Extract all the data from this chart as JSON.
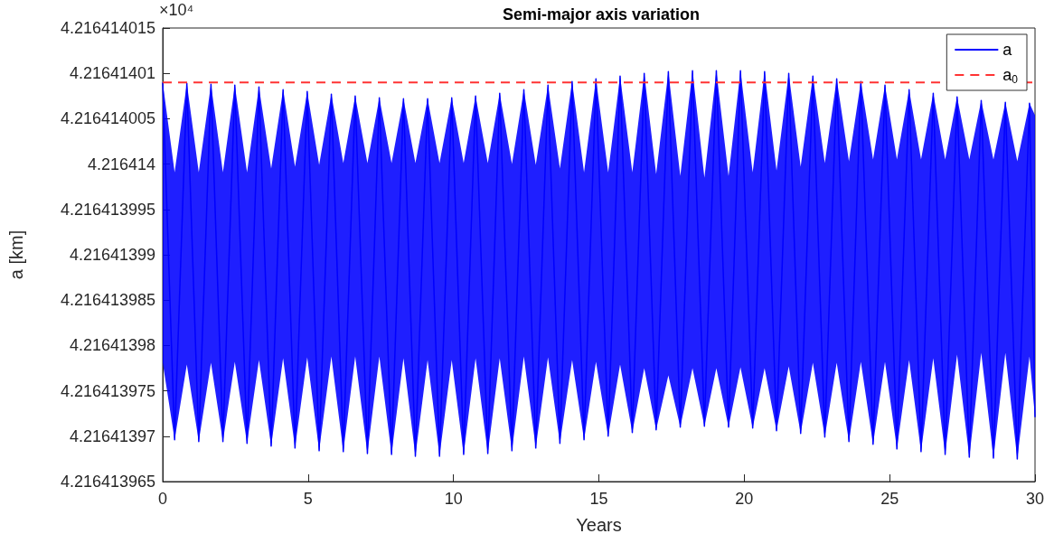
{
  "chart_data": {
    "type": "line",
    "title": "Semi-major axis variation",
    "xlabel": "Years",
    "ylabel": "a [km]",
    "annotations": [
      "×10⁴"
    ],
    "xlim": [
      0,
      30
    ],
    "xticks": [
      0,
      5,
      10,
      15,
      20,
      25,
      30
    ],
    "ylim": [
      4.216413965,
      4.216414015
    ],
    "yticks": [
      4.216413965,
      4.21641397,
      4.216413975,
      4.21641398,
      4.216413985,
      4.21641399,
      4.216413995,
      4.216414,
      4.216414005,
      4.21641401,
      4.216414015
    ],
    "grid": false,
    "legend": "top right",
    "marker": "none",
    "series": [
      {
        "name": "a",
        "color": "#0000ff",
        "x": [
          0,
          0.41,
          0.83,
          1.24,
          1.66,
          2.07,
          2.48,
          2.9,
          3.31,
          3.73,
          4.14,
          4.55,
          4.97,
          5.38,
          5.8,
          6.21,
          6.62,
          7.04,
          7.45,
          7.87,
          8.28,
          8.69,
          9.11,
          9.52,
          9.94,
          10.35,
          10.76,
          11.18,
          11.59,
          12.01,
          12.42,
          12.83,
          13.25,
          13.66,
          14.08,
          14.49,
          14.9,
          15.32,
          15.73,
          16.15,
          16.56,
          16.97,
          17.39,
          17.8,
          18.22,
          18.63,
          19.04,
          19.46,
          19.87,
          20.29,
          20.7,
          21.11,
          21.53,
          21.94,
          22.36,
          22.77,
          23.18,
          23.6,
          24.01,
          24.43,
          24.84,
          25.25,
          25.67,
          26.08,
          26.5,
          26.91,
          27.32,
          27.74,
          28.15,
          28.57,
          28.98,
          29.39,
          29.81,
          30
        ],
        "values": [
          4.216414009,
          4.2164139696,
          4.2164140089,
          4.2164139694,
          4.2164140088,
          4.2164139694,
          4.2164140087,
          4.2164139692,
          4.2164140085,
          4.2164139689,
          4.2164140082,
          4.2164139687,
          4.216414008,
          4.2164139684,
          4.2164140077,
          4.2164139683,
          4.2164140075,
          4.2164139681,
          4.2164140073,
          4.216413968,
          4.2164140072,
          4.2164139678,
          4.2164140072,
          4.2164139678,
          4.2164140073,
          4.216413968,
          4.2164140075,
          4.2164139681,
          4.2164140078,
          4.2164139684,
          4.2164140082,
          4.2164139687,
          4.2164140087,
          4.2164139692,
          4.2164140091,
          4.2164139696,
          4.2164140094,
          4.21641397,
          4.2164140097,
          4.2164139704,
          4.21641401,
          4.2164139707,
          4.2164140102,
          4.216413971,
          4.2164140103,
          4.2164139711,
          4.2164140103,
          4.216413971,
          4.2164140103,
          4.2164139709,
          4.2164140102,
          4.2164139706,
          4.21641401,
          4.2164139703,
          4.2164140097,
          4.2164139699,
          4.2164140094,
          4.2164139694,
          4.2164140091,
          4.2164139691,
          4.2164140087,
          4.2164139686,
          4.2164140082,
          4.2164139683,
          4.2164140078,
          4.216413968,
          4.2164140074,
          4.2164139677,
          4.216414007,
          4.2164139676,
          4.2164140068,
          4.2164139675,
          4.2164140067,
          4.2164139721
        ],
        "upper": [
          4.216414009,
          4.2164139991,
          4.2164140089,
          4.2164139991,
          4.2164140088,
          4.2164139991,
          4.2164140087,
          4.2164139991,
          4.2164140085,
          4.2164139995,
          4.2164140082,
          4.2164139997,
          4.216414008,
          4.2164139999,
          4.2164140077,
          4.2164140001,
          4.2164140075,
          4.2164140001,
          4.2164140073,
          4.2164140001,
          4.2164140072,
          4.2164140001,
          4.2164140072,
          4.2164140001,
          4.2164140073,
          4.2164140001,
          4.2164140075,
          4.2164140001,
          4.2164140078,
          4.216414,
          4.2164140082,
          4.2164139999,
          4.2164140087,
          4.2164139995,
          4.2164140091,
          4.2164139991,
          4.2164140094,
          4.2164139991,
          4.2164140097,
          4.2164139991,
          4.21641401,
          4.2164139989,
          4.2164140102,
          4.2164139987,
          4.2164140103,
          4.2164139985,
          4.2164140103,
          4.2164139987,
          4.2164140103,
          4.2164139991,
          4.2164140102,
          4.2164139993,
          4.21641401,
          4.2164139997,
          4.2164140097,
          4.2164140001,
          4.2164140094,
          4.2164140003,
          4.2164140091,
          4.2164140005,
          4.2164140087,
          4.2164140005,
          4.2164140082,
          4.2164140005,
          4.2164140078,
          4.2164140005,
          4.2164140074,
          4.2164140005,
          4.216414007,
          4.2164140005,
          4.2164140068,
          4.2164140003,
          4.2164140067,
          4.2164140054
        ],
        "lower": [
          4.2164139781,
          4.2164139696,
          4.2164139779,
          4.2164139694,
          4.2164139781,
          4.2164139694,
          4.2164139782,
          4.2164139692,
          4.2164139784,
          4.2164139689,
          4.2164139786,
          4.2164139687,
          4.2164139787,
          4.2164139684,
          4.2164139788,
          4.2164139683,
          4.2164139788,
          4.2164139681,
          4.2164139788,
          4.216413968,
          4.2164139786,
          4.2164139678,
          4.2164139784,
          4.2164139678,
          4.2164139784,
          4.216413968,
          4.2164139786,
          4.2164139681,
          4.2164139786,
          4.2164139684,
          4.2164139788,
          4.2164139687,
          4.2164139787,
          4.2164139692,
          4.2164139784,
          4.2164139696,
          4.2164139782,
          4.21641397,
          4.2164139779,
          4.2164139704,
          4.2164139775,
          4.2164139707,
          4.2164139767,
          4.216413971,
          4.2164139775,
          4.2164139711,
          4.2164139775,
          4.216413971,
          4.2164139776,
          4.2164139709,
          4.2164139775,
          4.2164139706,
          4.2164139777,
          4.2164139703,
          4.2164139781,
          4.2164139699,
          4.2164139781,
          4.2164139694,
          4.2164139782,
          4.2164139691,
          4.2164139782,
          4.2164139686,
          4.2164139784,
          4.2164139683,
          4.2164139786,
          4.216413968,
          4.216413979,
          4.2164139677,
          4.2164139792,
          4.2164139676,
          4.2164139792,
          4.2164139675,
          4.2164139788,
          4.2164139721
        ]
      }
    ],
    "ref_lines": [
      {
        "axis": "y",
        "value": 4.216414009,
        "label": "a$_{0}$",
        "color": "#ff3333",
        "line_style": "dashed"
      }
    ]
  }
}
